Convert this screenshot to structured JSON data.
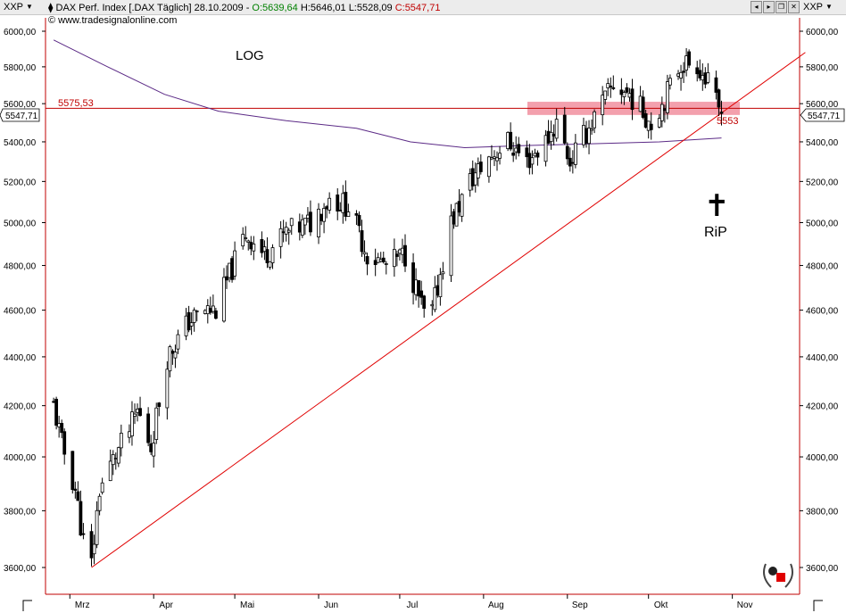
{
  "header": {
    "symbol_left": "XXP",
    "symbol_right": "XXP",
    "instrument": "DAX Perf. Index [.DAX  Täglich] 28.10.2009 - ",
    "open": "O:5639,64",
    "high": "H:5646,01",
    "low": "L:5528,09",
    "close": "C:5547,71",
    "credit": "© www.tradesignalonline.com",
    "window_buttons": [
      "◂",
      "▸",
      "❐",
      "✕"
    ]
  },
  "colors": {
    "candle": "#000000",
    "trendline": "#e00000",
    "moving_average": "#5b2a86",
    "resistance_zone": "#f08898",
    "price_marker": "#c00000"
  },
  "annotations": {
    "log": "LOG",
    "rip": "RiP",
    "cross": "✝",
    "resistance_value": "5575,53",
    "trend_value": "5553",
    "last_price": "5547,71"
  },
  "chart_data": {
    "type": "candlestick",
    "y_scale": "log",
    "ylim": [
      3520,
      6080
    ],
    "y_ticks": [
      "6000,00",
      "5800,00",
      "5600,00",
      "5400,00",
      "5200,00",
      "5000,00",
      "4800,00",
      "4600,00",
      "4400,00",
      "4200,00",
      "4000,00",
      "3800,00",
      "3600,00"
    ],
    "x_ticks": [
      "Mrz",
      "Apr",
      "Mai",
      "Jun",
      "Jul",
      "Aug",
      "Sep",
      "Okt",
      "Nov"
    ],
    "close_path": [
      [
        "2009-02-23",
        4200
      ],
      [
        "2009-02-26",
        4050
      ],
      [
        "2009-03-03",
        3880
      ],
      [
        "2009-03-06",
        3690
      ],
      [
        "2009-03-09",
        3610
      ],
      [
        "2009-03-12",
        3880
      ],
      [
        "2009-03-18",
        4010
      ],
      [
        "2009-03-23",
        4100
      ],
      [
        "2009-03-26",
        4180
      ],
      [
        "2009-03-31",
        4040
      ],
      [
        "2009-04-06",
        4400
      ],
      [
        "2009-04-14",
        4550
      ],
      [
        "2009-04-20",
        4600
      ],
      [
        "2009-04-24",
        4600
      ],
      [
        "2009-05-05",
        4950
      ],
      [
        "2009-05-12",
        4850
      ],
      [
        "2009-05-20",
        4950
      ],
      [
        "2009-05-29",
        5000
      ],
      [
        "2009-06-05",
        5120
      ],
      [
        "2009-06-12",
        5080
      ],
      [
        "2009-06-19",
        4850
      ],
      [
        "2009-06-26",
        4800
      ],
      [
        "2009-07-03",
        4850
      ],
      [
        "2009-07-10",
        4580
      ],
      [
        "2009-07-13",
        4590
      ],
      [
        "2009-07-20",
        5000
      ],
      [
        "2009-07-27",
        5200
      ],
      [
        "2009-08-03",
        5320
      ],
      [
        "2009-08-10",
        5400
      ],
      [
        "2009-08-17",
        5300
      ],
      [
        "2009-08-24",
        5400
      ],
      [
        "2009-08-28",
        5500
      ],
      [
        "2009-09-02",
        5300
      ],
      [
        "2009-09-08",
        5450
      ],
      [
        "2009-09-14",
        5600
      ],
      [
        "2009-09-18",
        5700
      ],
      [
        "2009-09-24",
        5650
      ],
      [
        "2009-10-02",
        5500
      ],
      [
        "2009-10-06",
        5600
      ],
      [
        "2009-10-13",
        5820
      ],
      [
        "2009-10-19",
        5820
      ],
      [
        "2009-10-23",
        5700
      ],
      [
        "2009-10-28",
        5547.71
      ]
    ],
    "moving_average_path": [
      [
        "2009-02-23",
        5950
      ],
      [
        "2009-03-15",
        5800
      ],
      [
        "2009-04-05",
        5650
      ],
      [
        "2009-04-25",
        5560
      ],
      [
        "2009-05-20",
        5510
      ],
      [
        "2009-06-15",
        5470
      ],
      [
        "2009-07-05",
        5400
      ],
      [
        "2009-07-25",
        5370
      ],
      [
        "2009-08-15",
        5380
      ],
      [
        "2009-09-10",
        5390
      ],
      [
        "2009-10-05",
        5400
      ],
      [
        "2009-10-28",
        5420
      ]
    ],
    "resistance_level": 5575.53,
    "resistance_zone": [
      5540,
      5610
    ],
    "trendline": [
      [
        "2009-03-09",
        3600
      ],
      [
        "2009-11-28",
        5880
      ]
    ]
  }
}
